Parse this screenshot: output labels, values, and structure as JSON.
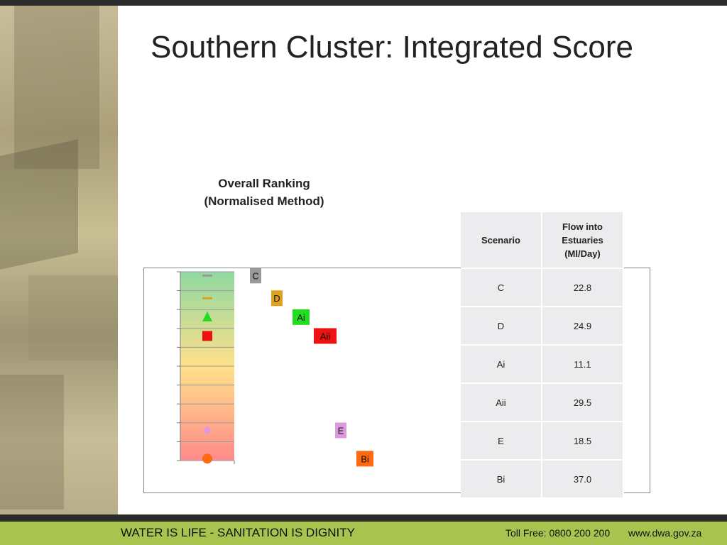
{
  "slide": {
    "title": "Southern Cluster: Integrated Score"
  },
  "footer": {
    "slogan": "WATER IS LIFE - SANITATION IS DIGNITY",
    "tollfree": "Toll Free: 0800 200 200",
    "website": "www.dwa.gov.za"
  },
  "chart_data": {
    "type": "scatter",
    "title_line1": "Overall Ranking",
    "title_line2": "(Normalised Method)",
    "xlabel": "",
    "ylabel": "",
    "grid": true,
    "legend": "none",
    "ylim": [
      0,
      10
    ],
    "gradient_top": "#8fd9a0",
    "gradient_mid": "#ffe08a",
    "gradient_bottom": "#ff8a8a",
    "series": [
      {
        "label": "C",
        "rank": 0.2,
        "label_offset": 1,
        "marker": "dash",
        "color": "#999999"
      },
      {
        "label": "D",
        "rank": 1.4,
        "label_offset": 2,
        "marker": "dash",
        "color": "#e0a020"
      },
      {
        "label": "Ai",
        "rank": 2.4,
        "label_offset": 3,
        "marker": "triangle",
        "color": "#22dd22"
      },
      {
        "label": "Aii",
        "rank": 3.4,
        "label_offset": 4,
        "marker": "square",
        "color": "#ee1111"
      },
      {
        "label": "E",
        "rank": 8.4,
        "label_offset": 5,
        "marker": "diamond",
        "color": "#dd99dd"
      },
      {
        "label": "Bi",
        "rank": 9.9,
        "label_offset": 6,
        "marker": "circle",
        "color": "#ff6a10"
      }
    ]
  },
  "table": {
    "header_scenario": "Scenario",
    "header_flow_line1": "Flow into",
    "header_flow_line2": "Estuaries",
    "header_flow_line3": "(Ml/Day)",
    "rows": [
      {
        "scenario": "C",
        "flow": "22.8"
      },
      {
        "scenario": "D",
        "flow": "24.9"
      },
      {
        "scenario": "Ai",
        "flow": "11.1"
      },
      {
        "scenario": "Aii",
        "flow": "29.5"
      },
      {
        "scenario": "E",
        "flow": "18.5"
      },
      {
        "scenario": "Bi",
        "flow": "37.0"
      }
    ]
  }
}
